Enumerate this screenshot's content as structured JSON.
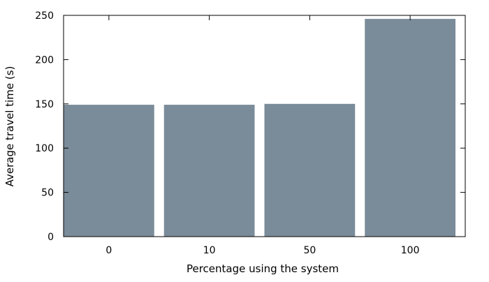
{
  "chart_data": {
    "type": "bar",
    "title": "",
    "xlabel": "Percentage using the system",
    "ylabel": "Average travel time (s)",
    "categories": [
      "0",
      "10",
      "50",
      "100"
    ],
    "values": [
      149,
      149,
      150,
      246
    ],
    "ylim": [
      0,
      250
    ],
    "yticks": [
      "0",
      "50",
      "100",
      "150",
      "200",
      "250"
    ],
    "grid": false,
    "legend": "none",
    "bar_color": "#7a8b99",
    "axis_color": "#000000"
  }
}
